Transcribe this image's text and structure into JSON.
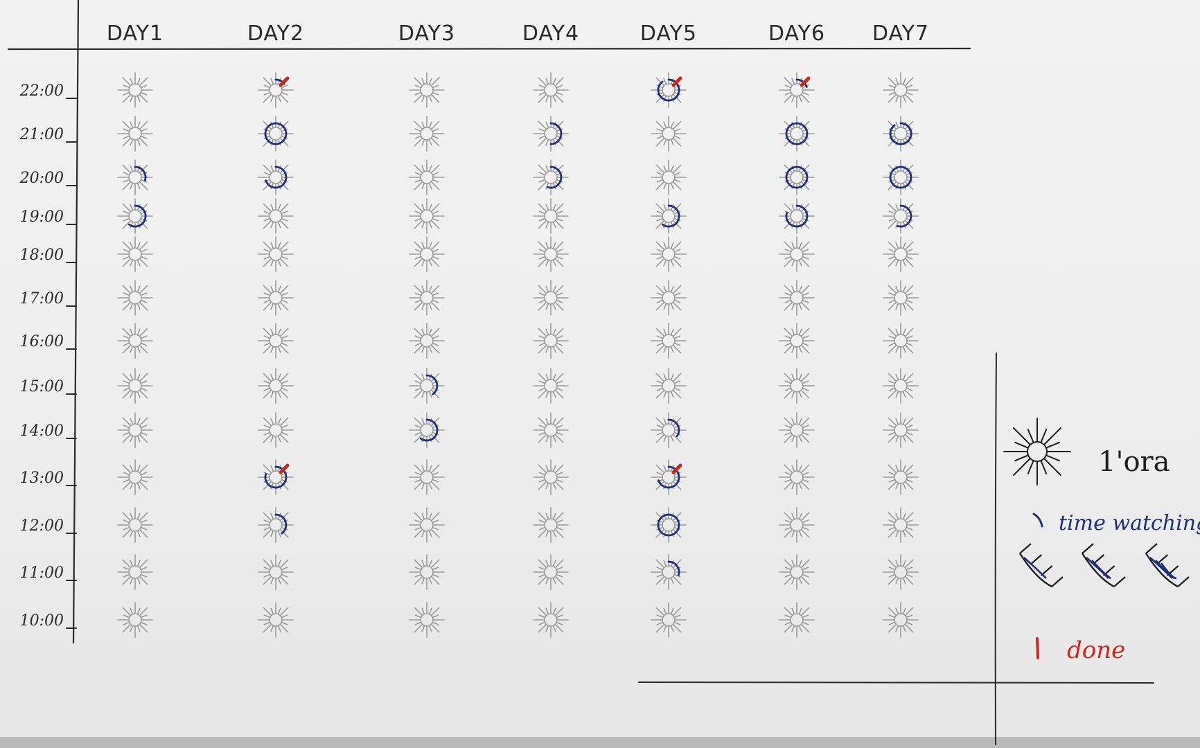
{
  "colors": {
    "pencil": "#9a9a9a",
    "ink": "#2a2a2a",
    "watching": "#1f2f7a",
    "done": "#c8281e"
  },
  "chart_data": {
    "type": "table",
    "days": [
      "DAY1",
      "DAY2",
      "DAY3",
      "DAY4",
      "DAY5",
      "DAY6",
      "DAY7"
    ],
    "times": [
      "22:00",
      "21:00",
      "20:00",
      "19:00",
      "18:00",
      "17:00",
      "16:00",
      "15:00",
      "14:00",
      "13:00",
      "12:00",
      "11:00",
      "10:00"
    ],
    "watching_fraction": [
      [
        0,
        0,
        0.3,
        0.6,
        0,
        0,
        0,
        0,
        0,
        0,
        0,
        0,
        0
      ],
      [
        0.15,
        1,
        0.7,
        0,
        0,
        0,
        0,
        0,
        0,
        0.8,
        0.4,
        0,
        0
      ],
      [
        0,
        0,
        0,
        0,
        0,
        0,
        0,
        0.4,
        0.6,
        0,
        0,
        0,
        0
      ],
      [
        0,
        0.5,
        0.55,
        0,
        0,
        0,
        0,
        0,
        0,
        0,
        0,
        0,
        0
      ],
      [
        0.9,
        0,
        0,
        0.6,
        0,
        0,
        0,
        0,
        0.35,
        0.7,
        1,
        0.3,
        0
      ],
      [
        0.2,
        1,
        1,
        0.8,
        0,
        0,
        0,
        0,
        0,
        0,
        0,
        0,
        0
      ],
      [
        0,
        0.9,
        1,
        0.55,
        0,
        0,
        0,
        0,
        0,
        0,
        0,
        0,
        0
      ]
    ],
    "done": [
      [
        false,
        false,
        false,
        false,
        false,
        false,
        false,
        false,
        false,
        false,
        false,
        false,
        false
      ],
      [
        true,
        false,
        false,
        false,
        false,
        false,
        false,
        false,
        false,
        true,
        false,
        false,
        false
      ],
      [
        false,
        false,
        false,
        false,
        false,
        false,
        false,
        false,
        false,
        false,
        false,
        false,
        false
      ],
      [
        false,
        false,
        false,
        false,
        false,
        false,
        false,
        false,
        false,
        false,
        false,
        false,
        false
      ],
      [
        true,
        false,
        false,
        false,
        false,
        false,
        false,
        false,
        false,
        true,
        false,
        false,
        false
      ],
      [
        true,
        false,
        false,
        false,
        false,
        false,
        false,
        false,
        false,
        false,
        false,
        false,
        false
      ],
      [
        false,
        false,
        false,
        false,
        false,
        false,
        false,
        false,
        false,
        false,
        false,
        false,
        false
      ]
    ]
  },
  "legend": {
    "hour_label": "1'ora",
    "watching_label": "time watching",
    "done_label": "done",
    "hour_icon": "sun-icon",
    "watching_icon": "arc-stroke-icon",
    "done_icon": "red-tick-icon"
  }
}
